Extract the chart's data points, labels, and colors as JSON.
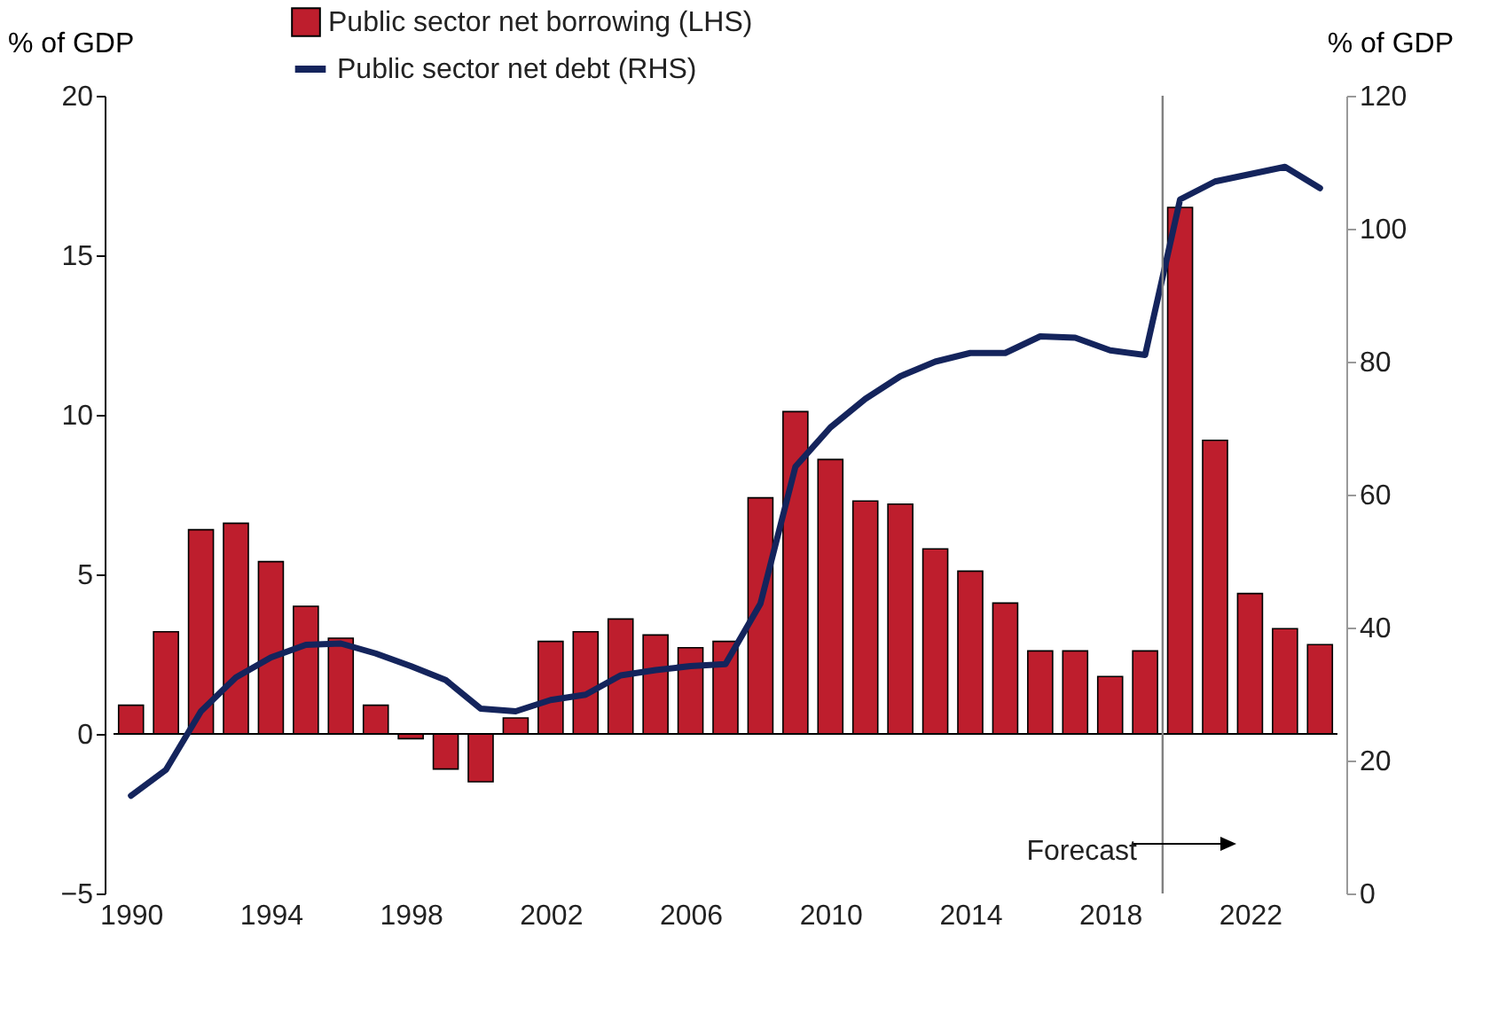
{
  "chart_data": {
    "type": "bar",
    "ylabel": "% of GDP",
    "y2label": "% of GDP",
    "x": [
      1990,
      1991,
      1992,
      1993,
      1994,
      1995,
      1996,
      1997,
      1998,
      1999,
      2000,
      2001,
      2002,
      2003,
      2004,
      2005,
      2006,
      2007,
      2008,
      2009,
      2010,
      2011,
      2012,
      2013,
      2014,
      2015,
      2016,
      2017,
      2018,
      2019,
      2020,
      2021,
      2022,
      2023,
      2024
    ],
    "xlim": [
      1989.5,
      2024.5
    ],
    "xticks": [
      1990,
      1994,
      1998,
      2002,
      2006,
      2010,
      2014,
      2018,
      2022
    ],
    "ylim": [
      -5,
      20
    ],
    "yticks": [
      -5,
      0,
      5,
      10,
      15,
      20
    ],
    "y2lim": [
      0,
      120
    ],
    "y2ticks": [
      0,
      20,
      40,
      60,
      80,
      100,
      120
    ],
    "series": [
      {
        "name": "Public sector net borrowing (LHS)",
        "color": "#be1e2d",
        "values": [
          0.9,
          3.2,
          6.4,
          6.6,
          5.4,
          4.0,
          3.0,
          0.9,
          -0.15,
          -1.1,
          -1.5,
          0.5,
          2.9,
          3.2,
          3.6,
          3.1,
          2.7,
          2.9,
          7.4,
          10.1,
          8.6,
          7.3,
          7.2,
          5.8,
          5.1,
          4.1,
          2.6,
          2.6,
          1.8,
          2.6,
          16.5,
          9.2,
          4.4,
          3.3,
          2.8
        ]
      },
      {
        "name": "Public sector net debt (RHS)",
        "type": "line",
        "axis": "y2",
        "color": "#14245c",
        "values": [
          14.7,
          18.6,
          27.4,
          32.5,
          35.5,
          37.4,
          37.6,
          36.1,
          34.2,
          32.1,
          27.8,
          27.4,
          29.1,
          29.9,
          32.8,
          33.6,
          34.2,
          34.5,
          43.6,
          64.2,
          70.1,
          74.4,
          77.8,
          80.0,
          81.3,
          81.3,
          83.8,
          83.6,
          81.7,
          81.0,
          104.4,
          107.1,
          108.2,
          109.3,
          106.1
        ]
      }
    ],
    "ref_lines": [
      {
        "axis": "x",
        "value": 2019.5,
        "color": "#808080"
      },
      {
        "axis": "y",
        "value": 0,
        "color": "#000000"
      }
    ],
    "annotations": [
      "Forecast"
    ],
    "legend": "top",
    "grid": false
  }
}
